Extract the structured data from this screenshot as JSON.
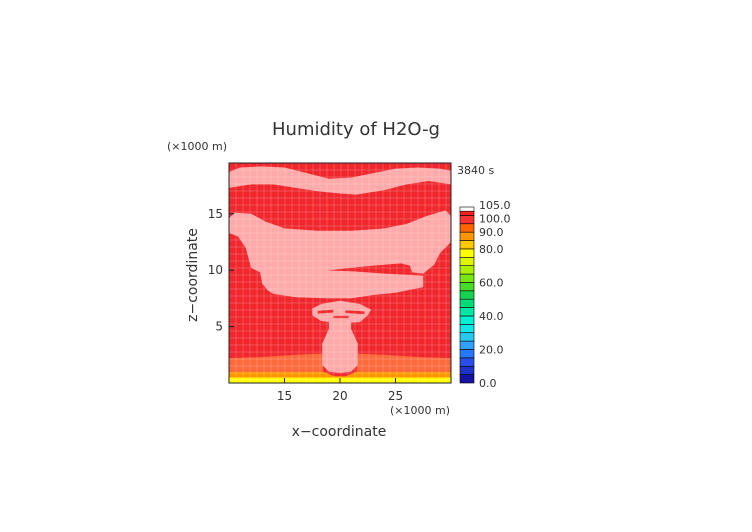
{
  "chart_data": {
    "type": "heatmap",
    "title": "Humidity of H2O-g",
    "xlabel": "x−coordinate",
    "ylabel": "z−coordinate",
    "x_unit": "(×1000 m)",
    "y_unit": "(×1000 m)",
    "timestamp": "3840 s",
    "xlim": [
      10,
      30
    ],
    "ylim": [
      0,
      19.5
    ],
    "x_ticks": [
      15,
      20,
      25
    ],
    "y_ticks": [
      5,
      10,
      15
    ],
    "colorbar": {
      "labels": [
        "105.0",
        "100.0",
        "90.0",
        "80.0",
        "60.0",
        "40.0",
        "20.0",
        "0.0"
      ],
      "label_values": [
        105,
        100,
        90,
        80,
        60,
        40,
        20,
        0
      ],
      "bands": [
        {
          "from": 0,
          "to": 5,
          "color": "#1414a0"
        },
        {
          "from": 5,
          "to": 10,
          "color": "#1e32c8"
        },
        {
          "from": 10,
          "to": 15,
          "color": "#2850e6"
        },
        {
          "from": 15,
          "to": 20,
          "color": "#2878ff"
        },
        {
          "from": 20,
          "to": 25,
          "color": "#32a0ff"
        },
        {
          "from": 25,
          "to": 30,
          "color": "#28c8f0"
        },
        {
          "from": 30,
          "to": 35,
          "color": "#14e6e6"
        },
        {
          "from": 35,
          "to": 40,
          "color": "#00f0d2"
        },
        {
          "from": 40,
          "to": 45,
          "color": "#00e6a5"
        },
        {
          "from": 45,
          "to": 50,
          "color": "#00dc78"
        },
        {
          "from": 50,
          "to": 55,
          "color": "#14d250"
        },
        {
          "from": 55,
          "to": 60,
          "color": "#46dc28"
        },
        {
          "from": 60,
          "to": 65,
          "color": "#78e614"
        },
        {
          "from": 65,
          "to": 70,
          "color": "#aaf000"
        },
        {
          "from": 70,
          "to": 75,
          "color": "#dcf500"
        },
        {
          "from": 75,
          "to": 80,
          "color": "#ffff00"
        },
        {
          "from": 80,
          "to": 85,
          "color": "#ffc800"
        },
        {
          "from": 85,
          "to": 90,
          "color": "#ff9600"
        },
        {
          "from": 90,
          "to": 95,
          "color": "#ff6400"
        },
        {
          "from": 95,
          "to": 100,
          "color": "#ff3232"
        },
        {
          "from": 100,
          "to": 102.5,
          "color": "#ff1e1e"
        },
        {
          "from": 102.5,
          "to": 105,
          "color": "#ffffff"
        }
      ]
    },
    "field": {
      "background": {
        "value": 100,
        "color": "#f0282d"
      },
      "regions": [
        {
          "name": "surface-yellow-band",
          "value": 80,
          "color": "#ffff00",
          "polygon": [
            [
              10,
              0
            ],
            [
              30,
              0
            ],
            [
              30,
              0.5
            ],
            [
              10,
              0.5
            ]
          ]
        },
        {
          "name": "surface-orange-band",
          "value": 90,
          "color": "#ff9600",
          "polygon": [
            [
              10,
              0.5
            ],
            [
              30,
              0.5
            ],
            [
              30,
              1.0
            ],
            [
              21.5,
              1.0
            ],
            [
              20.5,
              0.6
            ],
            [
              19.5,
              0.6
            ],
            [
              18.5,
              1.0
            ],
            [
              10,
              1.0
            ]
          ]
        },
        {
          "name": "boundary-layer",
          "value": 95,
          "color": "#ff6a3c",
          "polygon": [
            [
              10,
              1.0
            ],
            [
              30,
              1.0
            ],
            [
              30,
              2.2
            ],
            [
              27,
              2.3
            ],
            [
              24,
              2.5
            ],
            [
              21.6,
              2.6
            ],
            [
              21.5,
              1.0
            ],
            [
              18.5,
              1.0
            ],
            [
              18.4,
              2.6
            ],
            [
              16,
              2.5
            ],
            [
              13,
              2.3
            ],
            [
              10,
              2.2
            ]
          ]
        },
        {
          "name": "upper-moist-layer",
          "value": 102,
          "color": "#ffaaaa",
          "polygon": [
            [
              10,
              18.7
            ],
            [
              11,
              19.1
            ],
            [
              13,
              19.2
            ],
            [
              15,
              19.1
            ],
            [
              17,
              18.6
            ],
            [
              19,
              18.1
            ],
            [
              21,
              18.2
            ],
            [
              23,
              18.6
            ],
            [
              25,
              19.0
            ],
            [
              27,
              19.1
            ],
            [
              29,
              19.0
            ],
            [
              30,
              18.8
            ],
            [
              30,
              17.6
            ],
            [
              28,
              17.9
            ],
            [
              26,
              17.6
            ],
            [
              24,
              17.1
            ],
            [
              21.5,
              16.7
            ],
            [
              20,
              16.8
            ],
            [
              18,
              17.0
            ],
            [
              16,
              17.3
            ],
            [
              14,
              17.6
            ],
            [
              12,
              17.6
            ],
            [
              10,
              17.3
            ]
          ]
        },
        {
          "name": "anvil-layer",
          "value": 102,
          "color": "#ffaaaa",
          "polygon": [
            [
              10,
              14.6
            ],
            [
              10.5,
              15.1
            ],
            [
              12,
              15.0
            ],
            [
              13.3,
              14.3
            ],
            [
              15,
              13.7
            ],
            [
              18,
              13.5
            ],
            [
              21,
              13.5
            ],
            [
              24,
              13.7
            ],
            [
              26,
              14.1
            ],
            [
              27.8,
              14.8
            ],
            [
              29.5,
              15.3
            ],
            [
              30,
              14.8
            ],
            [
              30,
              12.5
            ],
            [
              29,
              11.5
            ],
            [
              28.5,
              10.5
            ],
            [
              27.5,
              9.7
            ],
            [
              26.5,
              9.8
            ],
            [
              26.3,
              10.4
            ],
            [
              25.5,
              10.6
            ],
            [
              23,
              10.4
            ],
            [
              20,
              10.1
            ],
            [
              17.5,
              9.8
            ],
            [
              15.5,
              9.6
            ],
            [
              12.8,
              9.8
            ],
            [
              12,
              10.2
            ],
            [
              11.5,
              12.0
            ],
            [
              10.8,
              13.0
            ],
            [
              10,
              13.3
            ]
          ]
        },
        {
          "name": "mid-cloud-layer",
          "value": 102,
          "color": "#ffaaaa",
          "polygon": [
            [
              12.8,
              9.8
            ],
            [
              15,
              10.0
            ],
            [
              18,
              10.0
            ],
            [
              21,
              9.9
            ],
            [
              24,
              9.7
            ],
            [
              26,
              9.6
            ],
            [
              27.5,
              9.5
            ],
            [
              27.5,
              8.5
            ],
            [
              25,
              8.0
            ],
            [
              23,
              7.8
            ],
            [
              21,
              7.5
            ],
            [
              19,
              7.5
            ],
            [
              16,
              7.6
            ],
            [
              14,
              7.9
            ],
            [
              13.5,
              8.2
            ],
            [
              13,
              8.8
            ]
          ]
        },
        {
          "name": "detrainment-blob",
          "value": 102,
          "color": "#ffaaaa",
          "polygon": [
            [
              17.5,
              6.6
            ],
            [
              18.3,
              7.0
            ],
            [
              20,
              7.3
            ],
            [
              21.8,
              7.0
            ],
            [
              22.8,
              6.5
            ],
            [
              22.5,
              6.0
            ],
            [
              21.8,
              5.4
            ],
            [
              20,
              5.3
            ],
            [
              18.3,
              5.5
            ],
            [
              17.5,
              6.0
            ]
          ]
        },
        {
          "name": "convective-updraft",
          "value": 102,
          "color": "#ffaaaa",
          "polygon": [
            [
              19.0,
              5.5
            ],
            [
              21.0,
              5.5
            ],
            [
              21.0,
              4.8
            ],
            [
              21.6,
              3.5
            ],
            [
              21.6,
              1.6
            ],
            [
              21.0,
              1.0
            ],
            [
              20.0,
              0.9
            ],
            [
              19.0,
              1.0
            ],
            [
              18.4,
              1.6
            ],
            [
              18.4,
              3.5
            ],
            [
              19.0,
              4.8
            ]
          ]
        }
      ],
      "streaks": [
        {
          "polygon": [
            [
              18.0,
              6.4
            ],
            [
              19.4,
              6.5
            ],
            [
              19.4,
              6.25
            ],
            [
              18.0,
              6.15
            ]
          ]
        },
        {
          "polygon": [
            [
              20.5,
              6.45
            ],
            [
              22.2,
              6.35
            ],
            [
              22.2,
              6.1
            ],
            [
              20.5,
              6.2
            ]
          ]
        },
        {
          "polygon": [
            [
              19.4,
              5.95
            ],
            [
              20.8,
              5.95
            ],
            [
              20.8,
              5.75
            ],
            [
              19.4,
              5.75
            ]
          ]
        }
      ]
    }
  }
}
